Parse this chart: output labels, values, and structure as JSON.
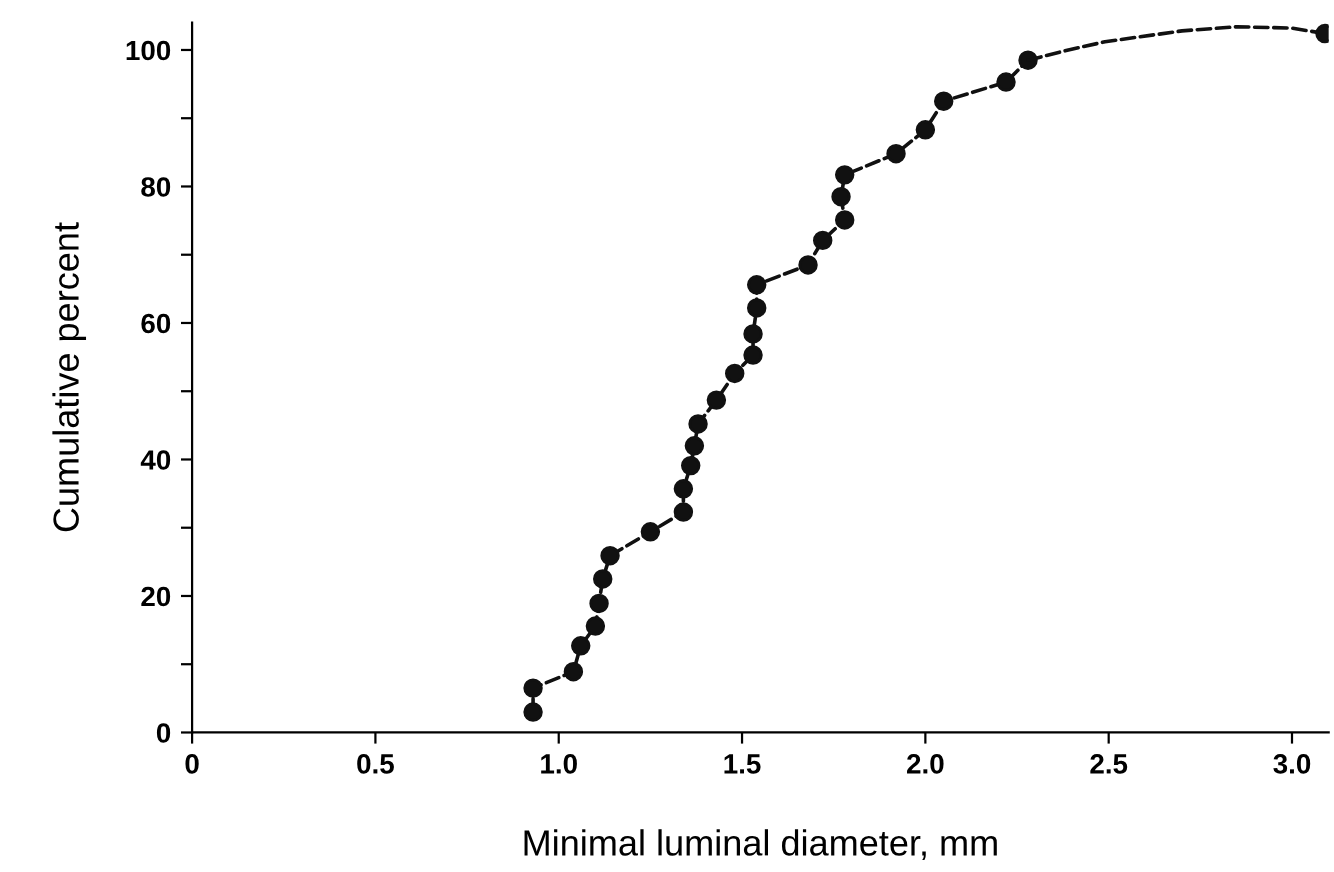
{
  "chart_data": {
    "type": "line",
    "xlabel": "Minimal luminal diameter, mm",
    "ylabel": "Cumulative percent",
    "xlim": [
      0,
      3.1
    ],
    "ylim": [
      0,
      104
    ],
    "xticks": [
      0,
      0.5,
      {
        "value": 1.0,
        "label": "1.0"
      },
      1.5,
      {
        "value": 2.0,
        "label": "2.0"
      },
      2.5,
      {
        "value": 3.0,
        "label": "3.0"
      }
    ],
    "yticks": [
      0,
      {
        "value": 10,
        "label": null
      },
      20,
      {
        "value": 30,
        "label": null
      },
      40,
      {
        "value": 50,
        "label": null
      },
      60,
      {
        "value": 70,
        "label": null
      },
      80,
      {
        "value": 90,
        "label": null
      },
      100
    ],
    "grid": false,
    "line_style": "dashed",
    "series": [
      {
        "marker": "circle",
        "color": "#111111",
        "x": [
          0.93,
          0.93,
          1.04,
          1.06,
          1.1,
          1.11,
          1.12,
          1.14,
          1.25,
          1.34,
          1.34,
          1.36,
          1.37,
          1.38,
          1.43,
          1.48,
          1.53,
          1.53,
          1.54,
          1.54,
          1.68,
          1.72,
          1.78,
          1.77,
          1.78,
          1.92,
          2.0,
          2.05,
          2.22,
          2.28
        ],
        "values": [
          3.0,
          6.5,
          8.9,
          12.7,
          15.6,
          18.9,
          22.5,
          25.9,
          29.4,
          32.3,
          35.7,
          39.1,
          42.0,
          45.2,
          48.7,
          52.6,
          55.3,
          58.4,
          62.2,
          65.6,
          68.5,
          72.1,
          75.1,
          78.5,
          81.7,
          84.8,
          88.3,
          92.5,
          95.3,
          98.5
        ]
      },
      {
        "marker": "none",
        "color": "#111111",
        "x": [
          2.28,
          2.39,
          2.49,
          2.7,
          2.85,
          3.0,
          3.09
        ],
        "values": [
          98.5,
          100.0,
          101.2,
          102.8,
          103.4,
          103.2,
          102.4
        ]
      },
      {
        "type": "scatter",
        "marker": "circle",
        "color": "#111111",
        "x": [
          3.09
        ],
        "values": [
          102.4
        ]
      }
    ]
  }
}
